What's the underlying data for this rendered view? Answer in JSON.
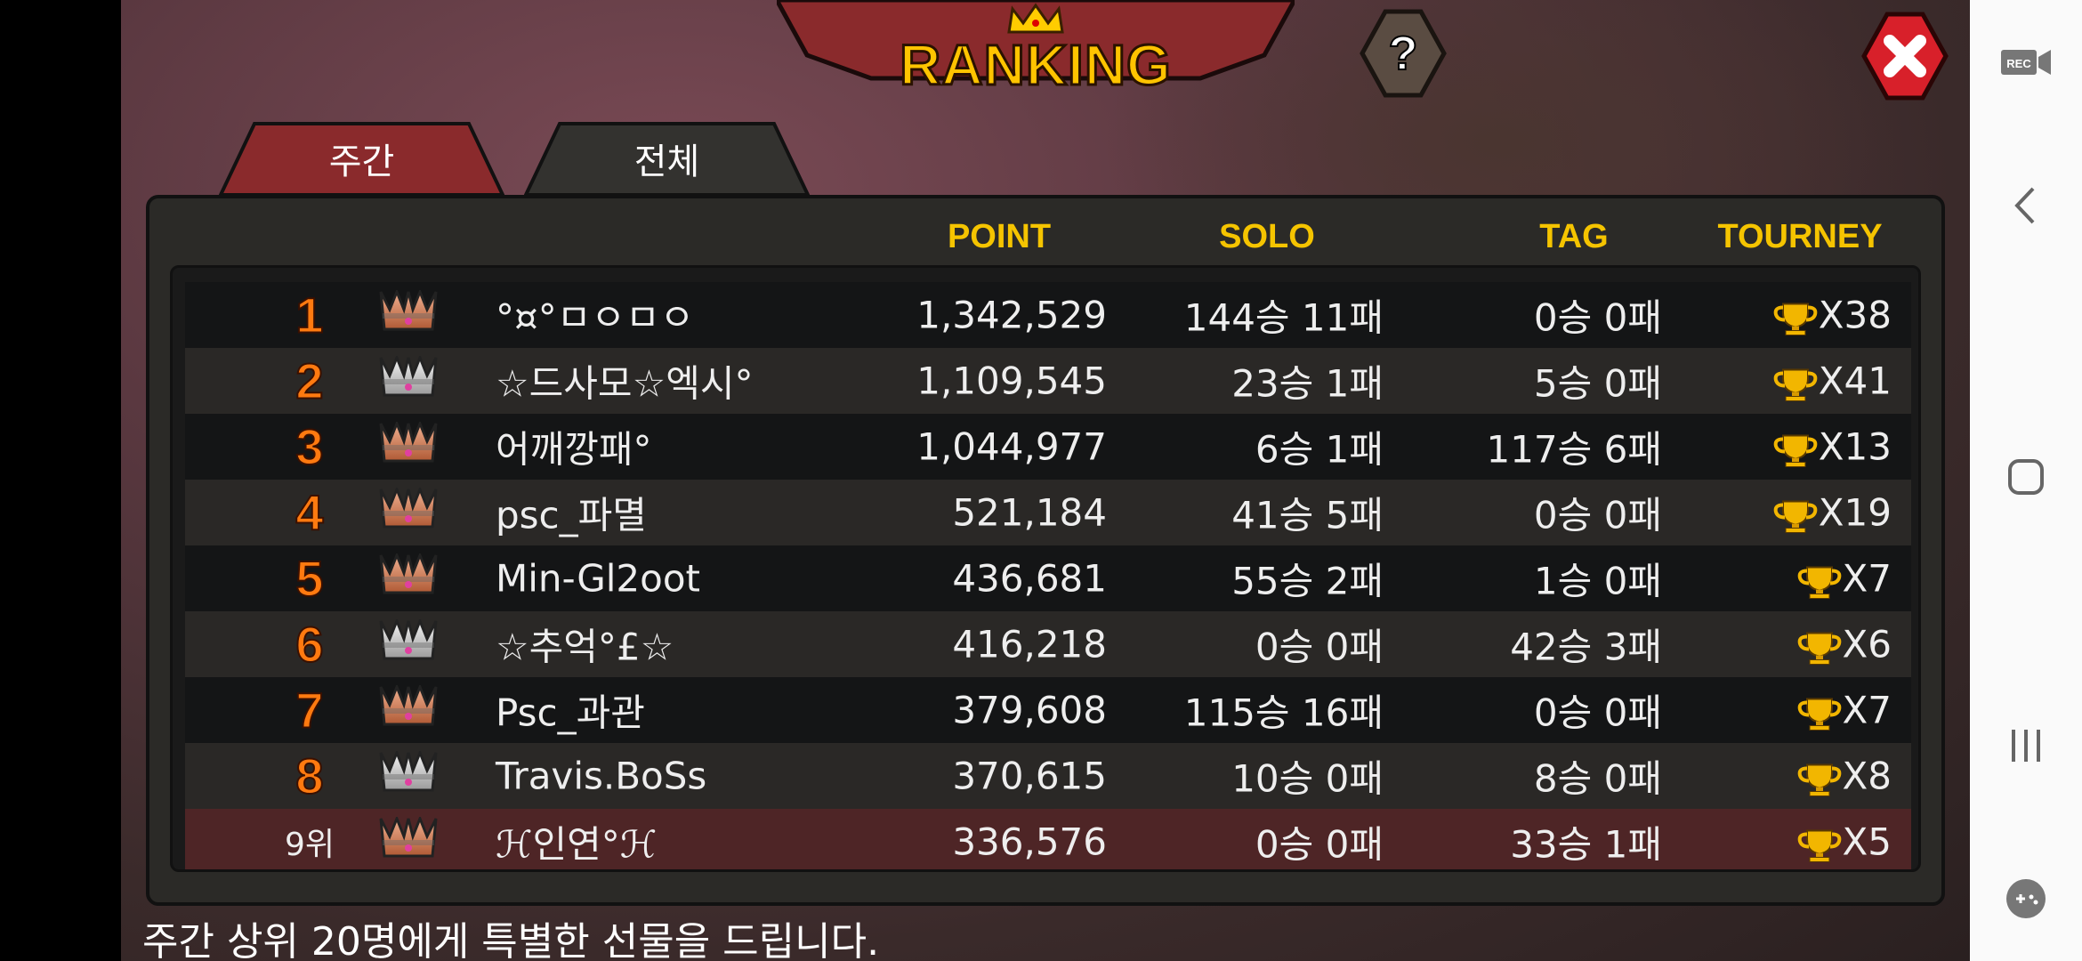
{
  "header": {
    "title": "RANKING",
    "help_icon": "question-icon",
    "close_icon": "close-icon"
  },
  "tabs": [
    {
      "label": "주간",
      "active": true
    },
    {
      "label": "전체",
      "active": false
    }
  ],
  "columns": {
    "point": "POINT",
    "solo": "SOLO",
    "tag": "TAG",
    "tourney": "TOURNEY"
  },
  "rows": [
    {
      "rank": "1",
      "crown": "bronze",
      "name": "°¤°ㅁㅇㅁㅇ",
      "point": "1,342,529",
      "solo": "144승 11패",
      "tag": "0승 0패",
      "tourney": "X38"
    },
    {
      "rank": "2",
      "crown": "silver",
      "name": "☆드사모☆엑시°",
      "point": "1,109,545",
      "solo": "23승 1패",
      "tag": "5승 0패",
      "tourney": "X41"
    },
    {
      "rank": "3",
      "crown": "bronze",
      "name": "어깨깡패°",
      "point": "1,044,977",
      "solo": "6승 1패",
      "tag": "117승 6패",
      "tourney": "X13"
    },
    {
      "rank": "4",
      "crown": "bronze",
      "name": "psc_파멸",
      "point": "521,184",
      "solo": "41승 5패",
      "tag": "0승 0패",
      "tourney": "X19"
    },
    {
      "rank": "5",
      "crown": "bronze",
      "name": "Min-Gl2oot",
      "point": "436,681",
      "solo": "55승 2패",
      "tag": "1승 0패",
      "tourney": "X7"
    },
    {
      "rank": "6",
      "crown": "silver",
      "name": "☆추억°£☆",
      "point": "416,218",
      "solo": "0승 0패",
      "tag": "42승 3패",
      "tourney": "X6"
    },
    {
      "rank": "7",
      "crown": "bronze",
      "name": "Psc_과관",
      "point": "379,608",
      "solo": "115승 16패",
      "tag": "0승 0패",
      "tourney": "X7"
    },
    {
      "rank": "8",
      "crown": "silver",
      "name": "Travis.BoSs",
      "point": "370,615",
      "solo": "10승 0패",
      "tag": "8승 0패",
      "tourney": "X8"
    },
    {
      "rank": "9위",
      "crown": "bronze",
      "name": "ℋ인연°ℋ",
      "point": "336,576",
      "solo": "0승 0패",
      "tag": "33승 1패",
      "tourney": "X5",
      "is_me": true
    }
  ],
  "footer": "주간 상위 20명에게 특별한 선물을 드립니다.",
  "navbar": {
    "rec_label": "REC",
    "items": [
      "back",
      "home",
      "recents",
      "game-tools"
    ]
  },
  "colors": {
    "header_gold": "#f5c400",
    "rank_orange": "#ff7a10",
    "my_row": "#4e2526",
    "banner_red": "#8a2a2c",
    "close_red": "#d8202a"
  }
}
